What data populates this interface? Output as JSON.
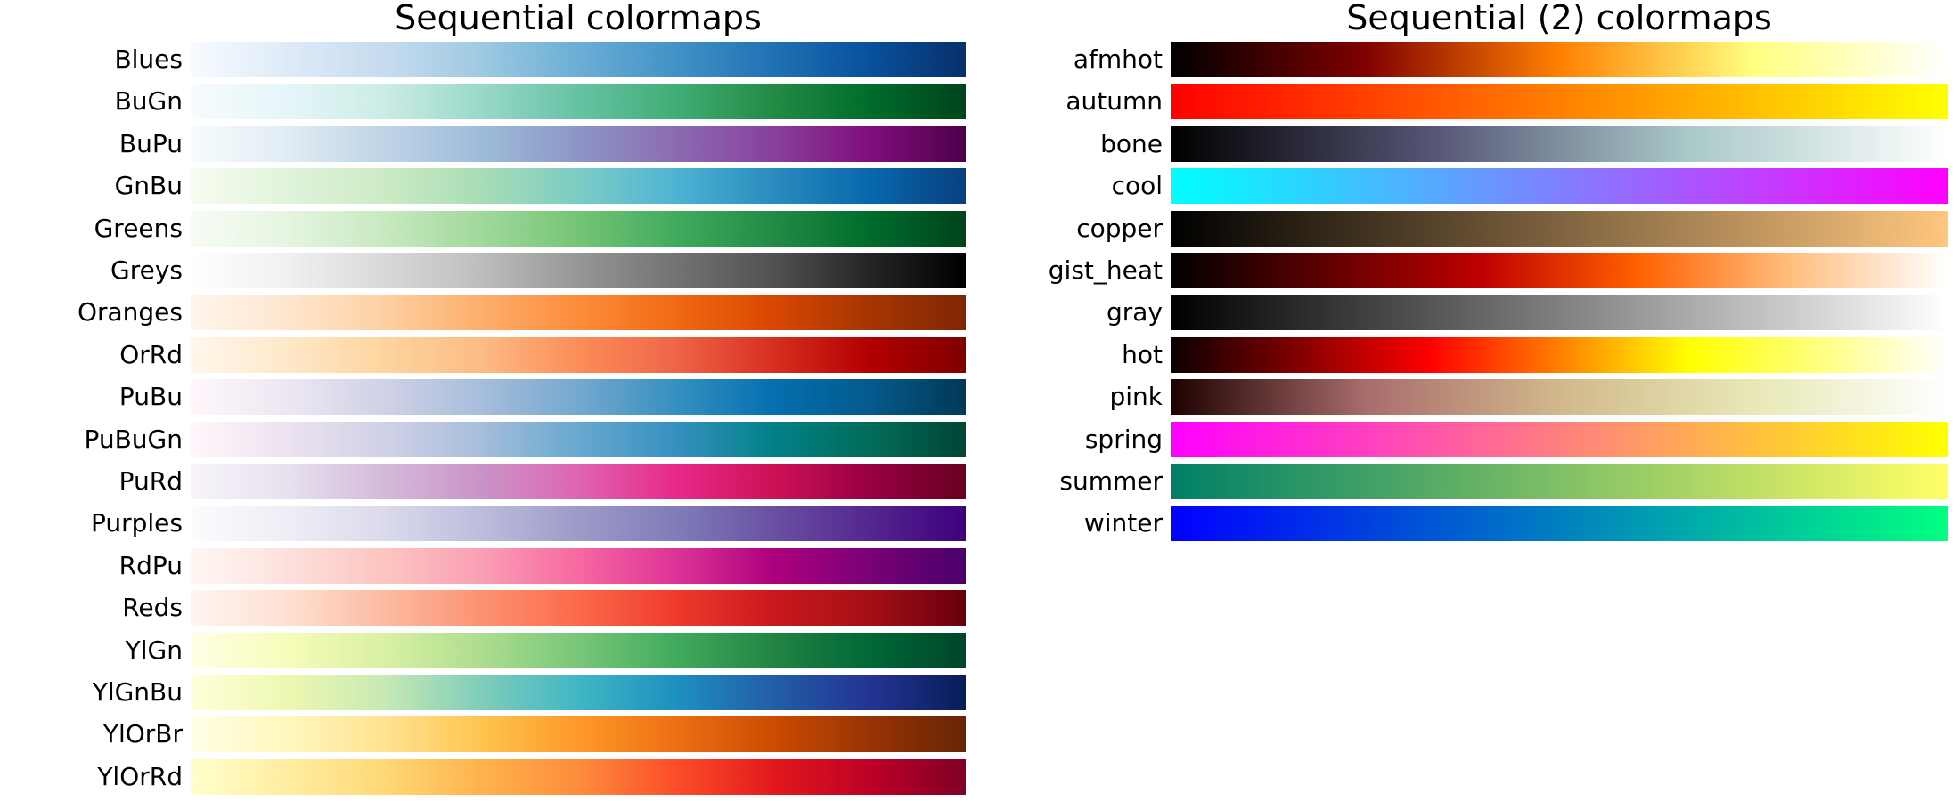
{
  "chart_data": [
    {
      "type": "heatmap",
      "title": "Sequential colormaps",
      "colormaps": [
        {
          "name": "Blues",
          "stops": [
            "#f7fbff",
            "#deebf7",
            "#c6dbef",
            "#9ecae1",
            "#6baed6",
            "#4292c6",
            "#2171b5",
            "#08519c",
            "#08306b"
          ]
        },
        {
          "name": "BuGn",
          "stops": [
            "#f7fcfd",
            "#e5f5f9",
            "#ccece6",
            "#99d8c9",
            "#66c2a4",
            "#41ae76",
            "#238b45",
            "#006d2c",
            "#00441b"
          ]
        },
        {
          "name": "BuPu",
          "stops": [
            "#f7fcfd",
            "#e0ecf4",
            "#bfd3e6",
            "#9ebcda",
            "#8c96c6",
            "#8c6bb1",
            "#88419d",
            "#810f7c",
            "#4d004b"
          ]
        },
        {
          "name": "GnBu",
          "stops": [
            "#f7fcf0",
            "#e0f3db",
            "#ccebc5",
            "#a8ddb5",
            "#7bccc4",
            "#4eb3d3",
            "#2b8cbe",
            "#0868ac",
            "#084081"
          ]
        },
        {
          "name": "Greens",
          "stops": [
            "#f7fcf5",
            "#e5f5e0",
            "#c7e9c0",
            "#a1d99b",
            "#74c476",
            "#41ab5d",
            "#238b45",
            "#006d2c",
            "#00441b"
          ]
        },
        {
          "name": "Greys",
          "stops": [
            "#ffffff",
            "#f0f0f0",
            "#d9d9d9",
            "#bdbdbd",
            "#969696",
            "#737373",
            "#525252",
            "#252525",
            "#000000"
          ]
        },
        {
          "name": "Oranges",
          "stops": [
            "#fff5eb",
            "#fee6ce",
            "#fdd0a2",
            "#fdae6b",
            "#fd8d3c",
            "#f16913",
            "#d94801",
            "#a63603",
            "#7f2704"
          ]
        },
        {
          "name": "OrRd",
          "stops": [
            "#fff7ec",
            "#fee8c8",
            "#fdd49e",
            "#fdbb84",
            "#fc8d59",
            "#ef6548",
            "#d7301f",
            "#b30000",
            "#7f0000"
          ]
        },
        {
          "name": "PuBu",
          "stops": [
            "#fff7fb",
            "#ece7f2",
            "#d0d1e6",
            "#a6bddb",
            "#74a9cf",
            "#3690c0",
            "#0570b0",
            "#045a8d",
            "#023858"
          ]
        },
        {
          "name": "PuBuGn",
          "stops": [
            "#fff7fb",
            "#ece2f0",
            "#d0d1e6",
            "#a6bddb",
            "#67a9cf",
            "#3690c0",
            "#02818a",
            "#016c59",
            "#014636"
          ]
        },
        {
          "name": "PuRd",
          "stops": [
            "#f7f4f9",
            "#e7e1ef",
            "#d4b9da",
            "#c994c7",
            "#df65b0",
            "#e7298a",
            "#ce1256",
            "#980043",
            "#67001f"
          ]
        },
        {
          "name": "Purples",
          "stops": [
            "#fcfbfd",
            "#efedf5",
            "#dadaeb",
            "#bcbddc",
            "#9e9ac8",
            "#807dba",
            "#6a51a3",
            "#54278f",
            "#3f007d"
          ]
        },
        {
          "name": "RdPu",
          "stops": [
            "#fff7f3",
            "#fde0dd",
            "#fcc5c0",
            "#fa9fb5",
            "#f768a1",
            "#dd3497",
            "#ae017e",
            "#7a0177",
            "#49006a"
          ]
        },
        {
          "name": "Reds",
          "stops": [
            "#fff5f0",
            "#fee0d2",
            "#fcbba1",
            "#fc9272",
            "#fb6a4a",
            "#ef3b2c",
            "#cb181d",
            "#a50f15",
            "#67000d"
          ]
        },
        {
          "name": "YlGn",
          "stops": [
            "#ffffe5",
            "#f7fcb9",
            "#d9f0a3",
            "#addd8e",
            "#78c679",
            "#41ab5d",
            "#238443",
            "#006837",
            "#004529"
          ]
        },
        {
          "name": "YlGnBu",
          "stops": [
            "#ffffd9",
            "#edf8b1",
            "#c7e9b4",
            "#7fcdbb",
            "#41b6c4",
            "#1d91c0",
            "#225ea8",
            "#253494",
            "#081d58"
          ]
        },
        {
          "name": "YlOrBr",
          "stops": [
            "#ffffe5",
            "#fff7bc",
            "#fee391",
            "#fec44f",
            "#fe9929",
            "#ec7014",
            "#cc4c02",
            "#993404",
            "#662506"
          ]
        },
        {
          "name": "YlOrRd",
          "stops": [
            "#ffffcc",
            "#ffeda0",
            "#fed976",
            "#feb24c",
            "#fd8d3c",
            "#fc4e2a",
            "#e31a1c",
            "#bd0026",
            "#800026"
          ]
        }
      ]
    },
    {
      "type": "heatmap",
      "title": "Sequential (2) colormaps",
      "colormaps": [
        {
          "name": "afmhot",
          "stops": [
            "#000000",
            "#400000",
            "#800000",
            "#c04000",
            "#ff8000",
            "#ffc040",
            "#ffff80",
            "#ffffc0",
            "#ffffff"
          ]
        },
        {
          "name": "autumn",
          "stops": [
            "#ff0000",
            "#ff8000",
            "#ffff00"
          ]
        },
        {
          "name": "bone",
          "stops": [
            "#000000",
            "#545474",
            "#a9c8c8",
            "#ffffff"
          ]
        },
        {
          "name": "cool",
          "stops": [
            "#00ffff",
            "#ff00ff"
          ]
        },
        {
          "name": "copper",
          "stops": [
            "#000000",
            "#ffc77f"
          ]
        },
        {
          "name": "gist_heat",
          "stops": [
            "#000000",
            "#600000",
            "#bf0000",
            "#ff6000",
            "#ffbf7f",
            "#ffffff"
          ]
        },
        {
          "name": "gray",
          "stops": [
            "#000000",
            "#ffffff"
          ]
        },
        {
          "name": "hot",
          "stops": [
            "#0b0000",
            "#ff0000",
            "#ffff00",
            "#ffffff"
          ]
        },
        {
          "name": "pink",
          "stops": [
            "#1e0000",
            "#a86c6c",
            "#d1b88c",
            "#e8e8b6",
            "#ffffff"
          ]
        },
        {
          "name": "spring",
          "stops": [
            "#ff00ff",
            "#ffff00"
          ]
        },
        {
          "name": "summer",
          "stops": [
            "#008066",
            "#ffff66"
          ]
        },
        {
          "name": "winter",
          "stops": [
            "#0000ff",
            "#00ff80"
          ]
        }
      ]
    }
  ]
}
